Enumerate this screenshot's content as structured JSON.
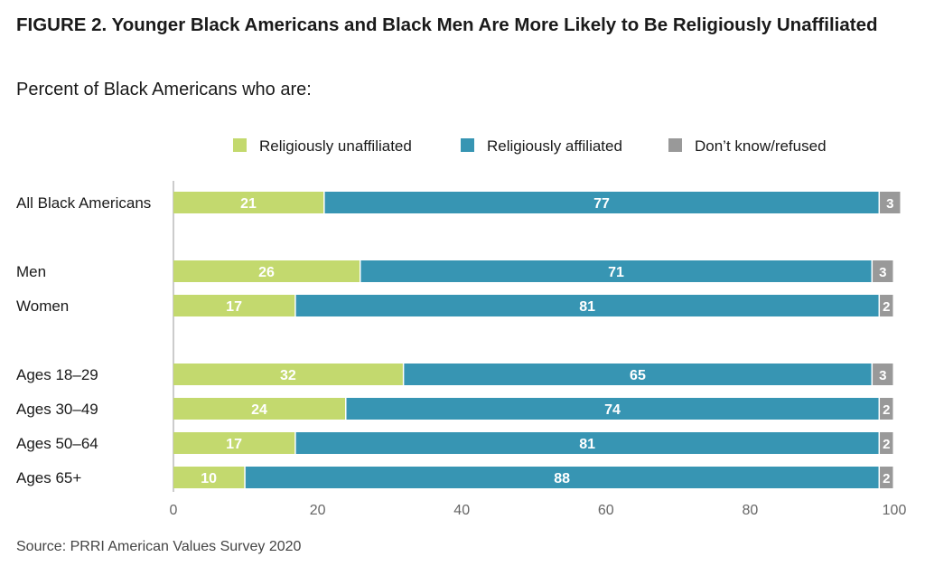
{
  "title": "FIGURE 2. Younger Black Americans and Black Men Are More Likely to Be Religiously Unaffiliated",
  "subtitle": "Percent of Black Americans who are:",
  "source": "Source: PRRI American Values Survey 2020",
  "colors": {
    "unaffiliated": "#c3d96e",
    "affiliated": "#3795b3",
    "dontknow": "#999999",
    "axis": "#bbbbbb",
    "tick_text": "#666666"
  },
  "chart_data": {
    "type": "bar",
    "orientation": "horizontal",
    "stacked": true,
    "categories": [
      "All Black Americans",
      "Men",
      "Women",
      "Ages 18–29",
      "Ages 30–49",
      "Ages 50–64",
      "Ages 65+"
    ],
    "groups": [
      [
        0
      ],
      [
        1,
        2
      ],
      [
        3,
        4,
        5,
        6
      ]
    ],
    "series": [
      {
        "name": "Religiously unaffiliated",
        "color_key": "unaffiliated",
        "values": [
          21,
          26,
          17,
          32,
          24,
          17,
          10
        ]
      },
      {
        "name": "Religiously affiliated",
        "color_key": "affiliated",
        "values": [
          77,
          71,
          81,
          65,
          74,
          81,
          88
        ]
      },
      {
        "name": "Don’t know/refused",
        "color_key": "dontknow",
        "values": [
          3,
          3,
          2,
          3,
          2,
          2,
          2
        ]
      }
    ],
    "xlim": [
      0,
      100
    ],
    "xticks": [
      0,
      20,
      40,
      60,
      80,
      100
    ],
    "legend_position": "top",
    "grid": false
  }
}
